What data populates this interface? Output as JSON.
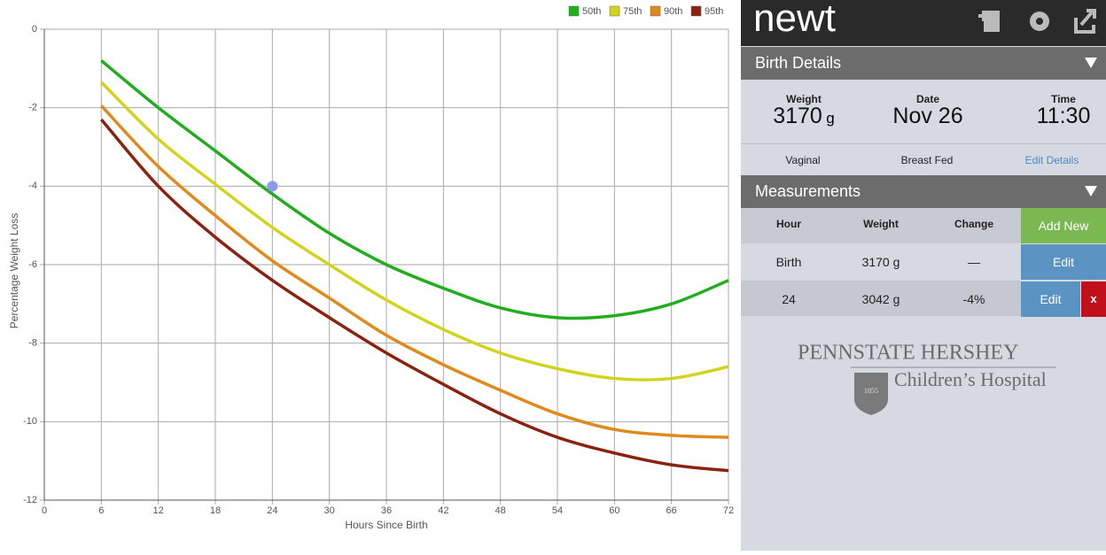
{
  "chart_data": {
    "type": "line",
    "x_label": "Hours Since Birth",
    "y_label": "Percentage Weight Loss",
    "x": [
      6,
      12,
      18,
      24,
      30,
      36,
      42,
      48,
      54,
      60,
      66,
      72
    ],
    "xlim": [
      0,
      72
    ],
    "xticks": [
      0,
      6,
      12,
      18,
      24,
      30,
      36,
      42,
      48,
      54,
      60,
      66,
      72
    ],
    "ylim": [
      -12,
      0
    ],
    "yticks": [
      -12,
      -10,
      -8,
      -6,
      -4,
      -2,
      0
    ],
    "grid": true,
    "legend": "top-right",
    "series": [
      {
        "name": "50th",
        "color": "#22ad1e",
        "values": [
          -0.8,
          -2.0,
          -3.1,
          -4.2,
          -5.2,
          -6.0,
          -6.6,
          -7.1,
          -7.35,
          -7.3,
          -7.0,
          -6.4
        ]
      },
      {
        "name": "75th",
        "color": "#d2d41c",
        "values": [
          -1.35,
          -2.8,
          -3.95,
          -5.05,
          -6.0,
          -6.9,
          -7.65,
          -8.25,
          -8.65,
          -8.9,
          -8.9,
          -8.6
        ]
      },
      {
        "name": "90th",
        "color": "#df8a1a",
        "values": [
          -1.95,
          -3.5,
          -4.75,
          -5.9,
          -6.85,
          -7.8,
          -8.55,
          -9.2,
          -9.8,
          -10.2,
          -10.35,
          -10.4
        ]
      },
      {
        "name": "95th",
        "color": "#8a2210",
        "values": [
          -2.3,
          -4.0,
          -5.3,
          -6.4,
          -7.35,
          -8.25,
          -9.05,
          -9.8,
          -10.4,
          -10.8,
          -11.1,
          -11.25
        ]
      }
    ],
    "points": {
      "color": "#8b9cef",
      "x": [
        24
      ],
      "values": [
        -4
      ]
    }
  },
  "app": {
    "title": "newt"
  },
  "birth_details": {
    "heading": "Birth Details",
    "weight": {
      "label": "Weight",
      "value": "3170",
      "unit": "g"
    },
    "date": {
      "label": "Date",
      "value": "Nov 26"
    },
    "time": {
      "label": "Time",
      "value": "11:30"
    },
    "delivery": "Vaginal",
    "feeding": "Breast Fed",
    "edit": "Edit Details"
  },
  "measurements": {
    "heading": "Measurements",
    "columns": [
      "Hour",
      "Weight",
      "Change"
    ],
    "add": "Add New",
    "rows": [
      [
        "Birth",
        "3170 g",
        "—"
      ],
      [
        "24",
        "3042 g",
        "-4%"
      ]
    ],
    "edit": "Edit",
    "delete": "x"
  },
  "logo": {
    "line1": "PENNSTATE HERSHEY",
    "line2": "Children’s Hospital",
    "year": "1855"
  }
}
